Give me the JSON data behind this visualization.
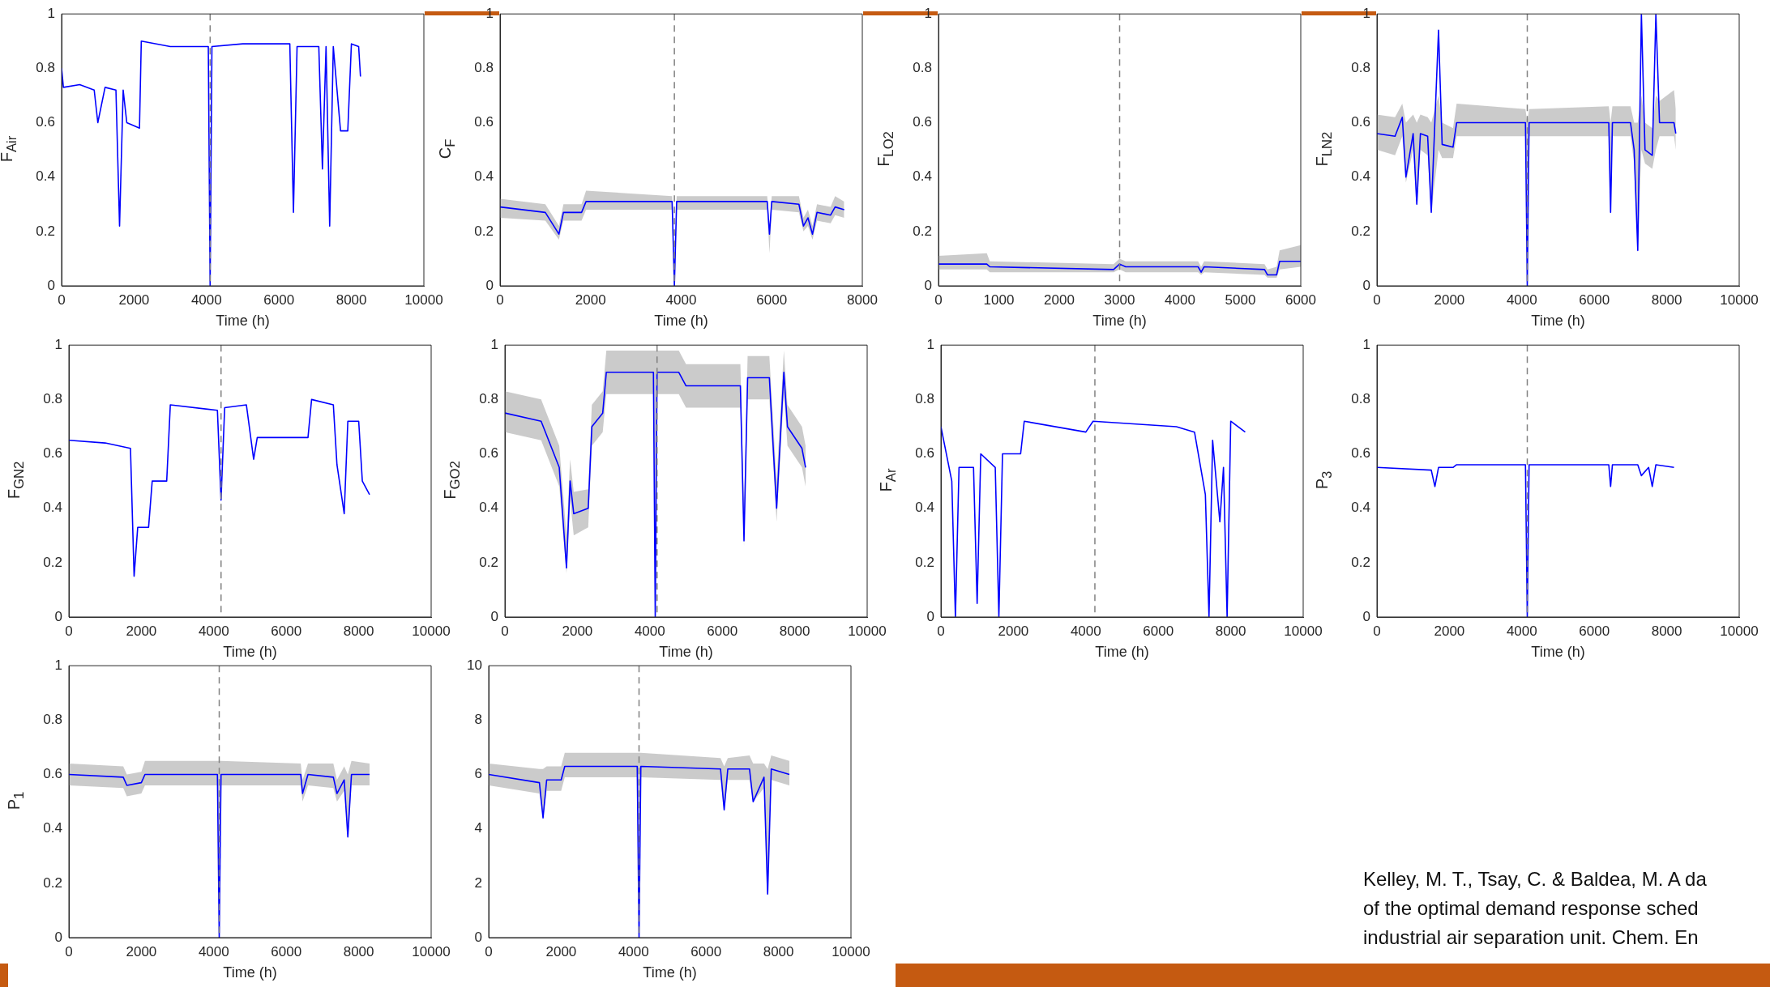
{
  "chart_data": [
    {
      "type": "line",
      "ylabel": "F$_{Air}$",
      "xlabel": "Time (h)",
      "xlim": [
        0,
        10000
      ],
      "xticks": [
        0,
        2000,
        4000,
        6000,
        8000,
        10000
      ],
      "ylim": [
        0,
        1
      ],
      "yticks": [
        0,
        0.2,
        0.4,
        0.6,
        0.8,
        1
      ],
      "marker": "none",
      "ref_lines": [
        {
          "axis": "x",
          "value": 4100,
          "color": "#808080",
          "line_style": "dashed"
        }
      ],
      "series": [
        {
          "color": "#0000ff",
          "x": [
            0,
            50,
            500,
            900,
            1000,
            1200,
            1500,
            1600,
            1700,
            1800,
            2150,
            2200,
            3000,
            4050,
            4100,
            4150,
            5000,
            6300,
            6400,
            6500,
            7100,
            7200,
            7300,
            7400,
            7500,
            7700,
            7900,
            8000,
            8200,
            8250
          ],
          "values": [
            0.8,
            0.73,
            0.74,
            0.72,
            0.6,
            0.73,
            0.72,
            0.22,
            0.72,
            0.6,
            0.58,
            0.9,
            0.88,
            0.88,
            0,
            0.88,
            0.89,
            0.89,
            0.27,
            0.88,
            0.88,
            0.43,
            0.88,
            0.22,
            0.88,
            0.57,
            0.57,
            0.89,
            0.88,
            0.77
          ]
        }
      ]
    },
    {
      "type": "line",
      "ylabel": "C$_{F}$",
      "xlabel": "Time (h)",
      "xlim": [
        0,
        8000
      ],
      "xticks": [
        0,
        2000,
        4000,
        6000,
        8000
      ],
      "ylim": [
        0,
        1
      ],
      "yticks": [
        0,
        0.2,
        0.4,
        0.6,
        0.8,
        1
      ],
      "marker": "none",
      "ref_lines": [
        {
          "axis": "x",
          "value": 3850,
          "color": "#808080",
          "line_style": "dashed"
        }
      ],
      "series": [
        {
          "color": "#0000ff",
          "x": [
            0,
            1000,
            1300,
            1400,
            1800,
            1900,
            3800,
            3850,
            3900,
            5900,
            5950,
            6000,
            6600,
            6700,
            6800,
            6900,
            7000,
            7300,
            7400,
            7600
          ],
          "values": [
            0.29,
            0.27,
            0.19,
            0.27,
            0.27,
            0.31,
            0.31,
            0,
            0.31,
            0.31,
            0.19,
            0.31,
            0.3,
            0.22,
            0.25,
            0.19,
            0.27,
            0.26,
            0.29,
            0.28
          ],
          "lower": [
            0.25,
            0.24,
            0.17,
            0.24,
            0.24,
            0.28,
            0.28,
            0,
            0.28,
            0.28,
            0.12,
            0.28,
            0.27,
            0.2,
            0.22,
            0.17,
            0.24,
            0.23,
            0.26,
            0.25
          ],
          "upper": [
            0.32,
            0.3,
            0.22,
            0.3,
            0.3,
            0.35,
            0.33,
            0,
            0.33,
            0.33,
            0.22,
            0.33,
            0.33,
            0.25,
            0.28,
            0.22,
            0.3,
            0.29,
            0.33,
            0.31
          ]
        }
      ]
    },
    {
      "type": "line",
      "ylabel": "F$_{LO2}$",
      "xlabel": "Time (h)",
      "xlim": [
        0,
        6000
      ],
      "xticks": [
        0,
        1000,
        2000,
        3000,
        4000,
        5000,
        6000
      ],
      "ylim": [
        0,
        1
      ],
      "yticks": [
        0,
        0.2,
        0.4,
        0.6,
        0.8,
        1
      ],
      "marker": "none",
      "ref_lines": [
        {
          "axis": "x",
          "value": 3000,
          "color": "#808080",
          "line_style": "dashed"
        }
      ],
      "series": [
        {
          "color": "#0000ff",
          "x": [
            0,
            800,
            850,
            2900,
            3000,
            3100,
            4300,
            4350,
            4400,
            5400,
            5450,
            5600,
            5650,
            6000
          ],
          "values": [
            0.08,
            0.08,
            0.07,
            0.06,
            0.08,
            0.07,
            0.07,
            0.05,
            0.07,
            0.06,
            0.04,
            0.04,
            0.09,
            0.09
          ],
          "lower": [
            0.06,
            0.06,
            0.05,
            0.05,
            0.06,
            0.05,
            0.05,
            0.04,
            0.05,
            0.04,
            0.03,
            0.03,
            0.06,
            0.07
          ],
          "upper": [
            0.11,
            0.12,
            0.09,
            0.08,
            0.1,
            0.09,
            0.09,
            0.07,
            0.09,
            0.08,
            0.06,
            0.07,
            0.13,
            0.15
          ]
        }
      ]
    },
    {
      "type": "line",
      "ylabel": "F$_{LN2}$",
      "xlabel": "Time (h)",
      "xlim": [
        0,
        10000
      ],
      "xticks": [
        0,
        2000,
        4000,
        6000,
        8000,
        10000
      ],
      "ylim": [
        0,
        1
      ],
      "yticks": [
        0,
        0.2,
        0.4,
        0.6,
        0.8,
        1
      ],
      "marker": "none",
      "ref_lines": [
        {
          "axis": "x",
          "value": 4150,
          "color": "#808080",
          "line_style": "dashed"
        }
      ],
      "series": [
        {
          "color": "#0000ff",
          "x": [
            0,
            500,
            700,
            800,
            1000,
            1100,
            1200,
            1400,
            1500,
            1700,
            1800,
            2100,
            2200,
            4100,
            4150,
            4200,
            6400,
            6450,
            6500,
            7000,
            7100,
            7200,
            7300,
            7400,
            7600,
            7700,
            7800,
            8200,
            8250
          ],
          "values": [
            0.56,
            0.55,
            0.62,
            0.4,
            0.56,
            0.3,
            0.56,
            0.55,
            0.27,
            0.94,
            0.52,
            0.51,
            0.6,
            0.6,
            0,
            0.6,
            0.6,
            0.27,
            0.6,
            0.6,
            0.5,
            0.13,
            1,
            0.5,
            0.48,
            1,
            0.6,
            0.6,
            0.56
          ],
          "lower": [
            0.5,
            0.48,
            0.55,
            0.38,
            0.5,
            0.3,
            0.5,
            0.48,
            0.27,
            0.5,
            0.47,
            0.47,
            0.55,
            0.55,
            0,
            0.55,
            0.55,
            0.27,
            0.55,
            0.55,
            0.45,
            0.13,
            0.5,
            0.45,
            0.43,
            0.5,
            0.55,
            0.55,
            0.5
          ],
          "upper": [
            0.63,
            0.62,
            0.67,
            0.6,
            0.63,
            0.6,
            0.63,
            0.62,
            0.6,
            0.7,
            0.6,
            0.58,
            0.67,
            0.65,
            0.6,
            0.65,
            0.66,
            0.6,
            0.66,
            0.66,
            0.6,
            0.6,
            0.7,
            0.6,
            0.58,
            0.7,
            0.68,
            0.72,
            0.65
          ]
        }
      ]
    },
    {
      "type": "line",
      "ylabel": "F$_{GN2}$",
      "xlabel": "Time (h)",
      "xlim": [
        0,
        10000
      ],
      "xticks": [
        0,
        2000,
        4000,
        6000,
        8000,
        10000
      ],
      "ylim": [
        0,
        1
      ],
      "yticks": [
        0,
        0.2,
        0.4,
        0.6,
        0.8,
        1
      ],
      "marker": "none",
      "ref_lines": [
        {
          "axis": "x",
          "value": 4200,
          "color": "#808080",
          "line_style": "dashed"
        }
      ],
      "series": [
        {
          "color": "#0000ff",
          "x": [
            0,
            1000,
            1700,
            1800,
            1900,
            2200,
            2300,
            2700,
            2800,
            4100,
            4200,
            4300,
            4900,
            5100,
            5200,
            6600,
            6700,
            7300,
            7400,
            7600,
            7700,
            8000,
            8100,
            8300
          ],
          "values": [
            0.65,
            0.64,
            0.62,
            0.15,
            0.33,
            0.33,
            0.5,
            0.5,
            0.78,
            0.76,
            0.43,
            0.77,
            0.78,
            0.58,
            0.66,
            0.66,
            0.8,
            0.78,
            0.56,
            0.38,
            0.72,
            0.72,
            0.5,
            0.45
          ]
        }
      ]
    },
    {
      "type": "line",
      "ylabel": "F$_{GO2}$",
      "xlabel": "Time (h)",
      "xlim": [
        0,
        10000
      ],
      "xticks": [
        0,
        2000,
        4000,
        6000,
        8000,
        10000
      ],
      "ylim": [
        0,
        1
      ],
      "yticks": [
        0,
        0.2,
        0.4,
        0.6,
        0.8,
        1
      ],
      "marker": "none",
      "ref_lines": [
        {
          "axis": "x",
          "value": 4200,
          "color": "#808080",
          "line_style": "dashed"
        }
      ],
      "series": [
        {
          "color": "#0000ff",
          "x": [
            0,
            1000,
            1500,
            1700,
            1800,
            1900,
            2300,
            2400,
            2700,
            2800,
            4100,
            4150,
            4200,
            4800,
            5000,
            6500,
            6600,
            6700,
            7300,
            7500,
            7700,
            7800,
            8200,
            8300
          ],
          "values": [
            0.75,
            0.72,
            0.55,
            0.18,
            0.5,
            0.38,
            0.4,
            0.7,
            0.75,
            0.9,
            0.9,
            0,
            0.9,
            0.9,
            0.85,
            0.85,
            0.28,
            0.88,
            0.88,
            0.4,
            0.9,
            0.7,
            0.62,
            0.55
          ],
          "lower": [
            0.68,
            0.65,
            0.48,
            0.16,
            0.43,
            0.3,
            0.33,
            0.63,
            0.68,
            0.82,
            0.82,
            0,
            0.82,
            0.82,
            0.77,
            0.77,
            0.26,
            0.8,
            0.8,
            0.35,
            0.82,
            0.63,
            0.55,
            0.48
          ],
          "upper": [
            0.83,
            0.8,
            0.63,
            0.3,
            0.58,
            0.46,
            0.47,
            0.78,
            0.83,
            0.98,
            0.98,
            0.98,
            0.98,
            0.98,
            0.93,
            0.93,
            0.4,
            0.96,
            0.96,
            0.5,
            0.98,
            0.78,
            0.7,
            0.63
          ]
        }
      ]
    },
    {
      "type": "line",
      "ylabel": "F$_{Ar}$",
      "xlabel": "Time (h)",
      "xlim": [
        0,
        10000
      ],
      "xticks": [
        0,
        2000,
        4000,
        6000,
        8000,
        10000
      ],
      "ylim": [
        0,
        1
      ],
      "yticks": [
        0,
        0.2,
        0.4,
        0.6,
        0.8,
        1
      ],
      "marker": "none",
      "ref_lines": [
        {
          "axis": "x",
          "value": 4250,
          "color": "#808080",
          "line_style": "dashed"
        }
      ],
      "series": [
        {
          "color": "#0000ff",
          "x": [
            0,
            300,
            400,
            500,
            900,
            1000,
            1100,
            1500,
            1600,
            1700,
            2200,
            2300,
            4000,
            4200,
            6500,
            7000,
            7300,
            7400,
            7500,
            7700,
            7800,
            7900,
            8000,
            8400
          ],
          "values": [
            0.7,
            0.5,
            0,
            0.55,
            0.55,
            0.05,
            0.6,
            0.55,
            0,
            0.6,
            0.6,
            0.72,
            0.68,
            0.72,
            0.7,
            0.68,
            0.45,
            0,
            0.65,
            0.35,
            0.55,
            0,
            0.72,
            0.68
          ]
        }
      ]
    },
    {
      "type": "line",
      "ylabel": "P$_{3}$",
      "xlabel": "Time (h)",
      "xlim": [
        0,
        10000
      ],
      "xticks": [
        0,
        2000,
        4000,
        6000,
        8000,
        10000
      ],
      "ylim": [
        0,
        1
      ],
      "yticks": [
        0,
        0.2,
        0.4,
        0.6,
        0.8,
        1
      ],
      "marker": "none",
      "ref_lines": [
        {
          "axis": "x",
          "value": 4150,
          "color": "#808080",
          "line_style": "dashed"
        }
      ],
      "series": [
        {
          "color": "#0000ff",
          "x": [
            0,
            1500,
            1600,
            1700,
            2100,
            2200,
            4100,
            4150,
            4200,
            6400,
            6450,
            6500,
            7200,
            7300,
            7500,
            7600,
            7700,
            8200
          ],
          "values": [
            0.55,
            0.54,
            0.48,
            0.55,
            0.55,
            0.56,
            0.56,
            0,
            0.56,
            0.56,
            0.48,
            0.56,
            0.56,
            0.52,
            0.55,
            0.48,
            0.56,
            0.55
          ]
        }
      ]
    },
    {
      "type": "line",
      "ylabel": "P$_{1}$",
      "xlabel": "Time (h)",
      "xlim": [
        0,
        10000
      ],
      "xticks": [
        0,
        2000,
        4000,
        6000,
        8000,
        10000
      ],
      "ylim": [
        0,
        1
      ],
      "yticks": [
        0,
        0.2,
        0.4,
        0.6,
        0.8,
        1
      ],
      "marker": "none",
      "ref_lines": [
        {
          "axis": "x",
          "value": 4150,
          "color": "#808080",
          "line_style": "dashed"
        }
      ],
      "series": [
        {
          "color": "#0000ff",
          "x": [
            0,
            1500,
            1600,
            2000,
            2100,
            4100,
            4150,
            4200,
            6400,
            6450,
            6600,
            7300,
            7400,
            7600,
            7700,
            7800,
            8300
          ],
          "values": [
            0.6,
            0.59,
            0.56,
            0.57,
            0.6,
            0.6,
            0,
            0.6,
            0.6,
            0.53,
            0.6,
            0.59,
            0.53,
            0.58,
            0.37,
            0.6,
            0.6
          ],
          "lower": [
            0.56,
            0.55,
            0.52,
            0.53,
            0.56,
            0.56,
            0,
            0.56,
            0.56,
            0.5,
            0.56,
            0.55,
            0.5,
            0.54,
            0.37,
            0.56,
            0.56
          ],
          "upper": [
            0.64,
            0.63,
            0.6,
            0.61,
            0.65,
            0.65,
            0.65,
            0.65,
            0.64,
            0.58,
            0.64,
            0.64,
            0.58,
            0.63,
            0.6,
            0.65,
            0.64
          ]
        }
      ]
    },
    {
      "type": "line",
      "xlabel": "Time (h)",
      "xlim": [
        0,
        10000
      ],
      "xticks": [
        0,
        2000,
        4000,
        6000,
        8000,
        10000
      ],
      "ylim": [
        0,
        10
      ],
      "yticks": [
        0,
        2,
        4,
        6,
        8,
        10
      ],
      "marker": "none",
      "ref_lines": [
        {
          "axis": "x",
          "value": 4150,
          "color": "#808080",
          "line_style": "dashed"
        }
      ],
      "annotations": [
        "Kelley, M. T., Tsay, C. & Baldea, M. A da",
        "of the optimal demand response sched",
        "industrial air separation unit. Chem. En"
      ],
      "series": [
        {
          "color": "#0000ff",
          "x": [
            0,
            1400,
            1500,
            1600,
            2000,
            2100,
            4100,
            4150,
            4200,
            6400,
            6500,
            6600,
            7200,
            7300,
            7600,
            7700,
            7800,
            8300
          ],
          "values": [
            6,
            5.7,
            4.4,
            5.8,
            5.8,
            6.3,
            6.3,
            0,
            6.3,
            6.2,
            4.7,
            6.2,
            6.2,
            5,
            5.9,
            1.6,
            6.2,
            6
          ],
          "lower": [
            5.6,
            5.3,
            4.4,
            5.4,
            5.4,
            5.9,
            5.9,
            0,
            5.9,
            5.8,
            4.7,
            5.8,
            5.8,
            5,
            5.5,
            1.6,
            5.8,
            5.6
          ],
          "upper": [
            6.4,
            6.2,
            6.2,
            6.3,
            6.3,
            6.8,
            6.8,
            6.8,
            6.8,
            6.6,
            6.3,
            6.6,
            6.7,
            6.4,
            6.4,
            6.2,
            6.7,
            6.5
          ]
        }
      ]
    }
  ]
}
